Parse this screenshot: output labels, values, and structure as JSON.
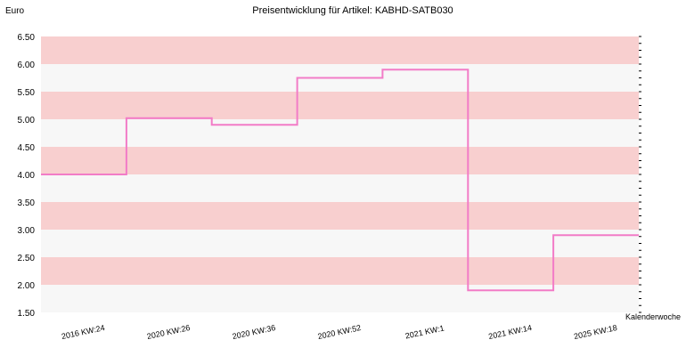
{
  "chart_data": {
    "type": "line",
    "step": true,
    "title": "Preisentwicklung für Artikel: KABHD-SATB030",
    "ylabel": "Euro",
    "xlabel": "Kalenderwoche",
    "ylim": [
      1.5,
      6.5
    ],
    "y_ticks": [
      "1.50",
      "2.00",
      "2.50",
      "3.00",
      "3.50",
      "4.00",
      "4.50",
      "5.00",
      "5.50",
      "6.00",
      "6.50"
    ],
    "categories": [
      "2016 KW:24",
      "2020 KW:26",
      "2020 KW:36",
      "2020 KW:52",
      "2021 KW:1",
      "2021 KW:14",
      "2025 KW:18"
    ],
    "series": [
      {
        "values": [
          4.0,
          5.02,
          4.9,
          5.75,
          5.9,
          1.9,
          2.9
        ]
      }
    ],
    "grid": true,
    "band_colors": [
      "#f7f7f7",
      "#f8cfcf"
    ],
    "line_color": "#f27cc7"
  }
}
